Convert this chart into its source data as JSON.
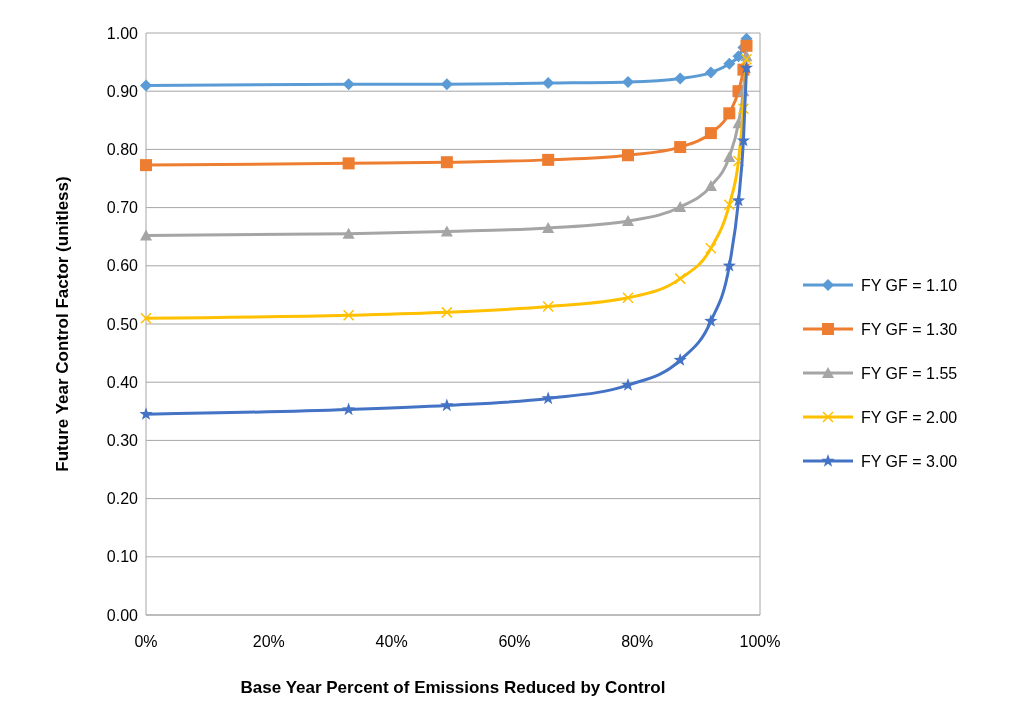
{
  "chart_data": {
    "type": "line",
    "xlabel": "Base Year Percent of Emissions Reduced by Control",
    "ylabel": "Future Year Control Factor (unitless)",
    "x": [
      0,
      33,
      49,
      65.5,
      78.5,
      87,
      92,
      95,
      96.5,
      97.3,
      97.8
    ],
    "xlim": [
      0,
      100
    ],
    "xticks": [
      {
        "value": 0,
        "label": "0%"
      },
      {
        "value": 20,
        "label": "20%"
      },
      {
        "value": 40,
        "label": "40%"
      },
      {
        "value": 60,
        "label": "60%"
      },
      {
        "value": 80,
        "label": "80%"
      },
      {
        "value": 100,
        "label": "100%"
      }
    ],
    "ylim": [
      0,
      1
    ],
    "yticks": [
      {
        "value": 0,
        "label": "0.00"
      },
      {
        "value": 0.1,
        "label": "0.10"
      },
      {
        "value": 0.2,
        "label": "0.20"
      },
      {
        "value": 0.3,
        "label": "0.30"
      },
      {
        "value": 0.4,
        "label": "0.40"
      },
      {
        "value": 0.5,
        "label": "0.50"
      },
      {
        "value": 0.6,
        "label": "0.60"
      },
      {
        "value": 0.7,
        "label": "0.70"
      },
      {
        "value": 0.8,
        "label": "0.80"
      },
      {
        "value": 0.9,
        "label": "0.90"
      },
      {
        "value": 1,
        "label": "1.00"
      }
    ],
    "grid": "y",
    "legend": "right",
    "series": [
      {
        "name": "FY GF = 1.10",
        "color": "#5b9bd5",
        "marker": "diamond",
        "values": [
          0.91,
          0.912,
          0.912,
          0.914,
          0.916,
          0.922,
          0.932,
          0.947,
          0.96,
          0.975,
          0.99
        ]
      },
      {
        "name": "FY GF = 1.30",
        "color": "#ed7d31",
        "marker": "square",
        "values": [
          0.773,
          0.776,
          0.778,
          0.782,
          0.79,
          0.804,
          0.828,
          0.862,
          0.9,
          0.937,
          0.978
        ]
      },
      {
        "name": "FY GF = 1.55",
        "color": "#a5a5a5",
        "marker": "triangle",
        "values": [
          0.652,
          0.655,
          0.659,
          0.665,
          0.677,
          0.701,
          0.737,
          0.787,
          0.845,
          0.9,
          0.96
        ]
      },
      {
        "name": "FY GF = 2.00",
        "color": "#ffc000",
        "marker": "cross",
        "values": [
          0.51,
          0.515,
          0.52,
          0.53,
          0.545,
          0.578,
          0.63,
          0.705,
          0.78,
          0.87,
          0.955
        ]
      },
      {
        "name": "FY GF = 3.00",
        "color": "#4472c4",
        "marker": "star",
        "values": [
          0.345,
          0.353,
          0.36,
          0.372,
          0.395,
          0.438,
          0.505,
          0.6,
          0.712,
          0.815,
          0.94
        ]
      }
    ]
  }
}
